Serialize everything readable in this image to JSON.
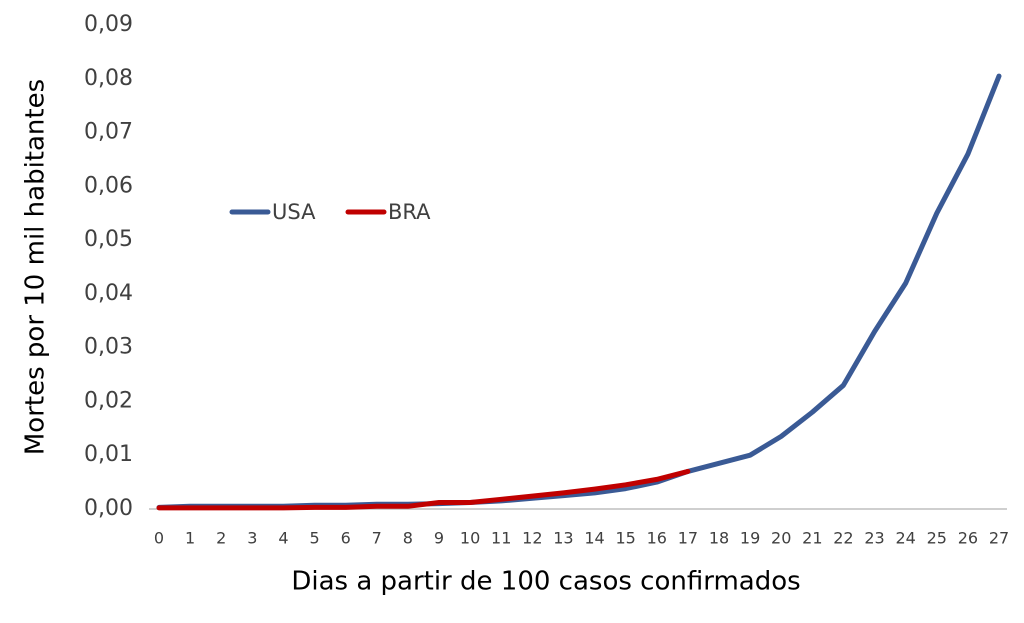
{
  "chart_data": {
    "type": "line",
    "ylabel": "Mortes por 10 mil habitantes",
    "xlabel": "Dias a partir de 100 casos confirmados",
    "categories": [
      "0",
      "1",
      "2",
      "3",
      "4",
      "5",
      "6",
      "7",
      "8",
      "9",
      "10",
      "11",
      "12",
      "13",
      "14",
      "15",
      "16",
      "17",
      "18",
      "19",
      "20",
      "21",
      "22",
      "23",
      "24",
      "25",
      "26",
      "27"
    ],
    "series": [
      {
        "name": "USA",
        "color": "#3a5a95",
        "values": [
          0.0003,
          0.0005,
          0.0005,
          0.0005,
          0.0005,
          0.0007,
          0.0007,
          0.0009,
          0.0009,
          0.001,
          0.0012,
          0.0015,
          0.002,
          0.0025,
          0.003,
          0.0038,
          0.005,
          0.007,
          0.0085,
          0.01,
          0.0135,
          0.018,
          0.023,
          0.033,
          0.042,
          0.055,
          0.066,
          0.0805
        ]
      },
      {
        "name": "BRA",
        "color": "#c00000",
        "values": [
          0.0002,
          0.0002,
          0.0002,
          0.0002,
          0.0002,
          0.0003,
          0.0003,
          0.0005,
          0.0005,
          0.0012,
          0.0012,
          0.0018,
          0.0024,
          0.003,
          0.0037,
          0.0045,
          0.0055,
          0.007,
          null,
          null,
          null,
          null,
          null,
          null,
          null,
          null,
          null,
          null
        ]
      }
    ],
    "ylim": [
      0,
      0.09
    ],
    "yticks": [
      {
        "value": 0,
        "label": "0,00"
      },
      {
        "value": 0.01,
        "label": "0,01"
      },
      {
        "value": 0.02,
        "label": "0,02"
      },
      {
        "value": 0.03,
        "label": "0,03"
      },
      {
        "value": 0.04,
        "label": "0,04"
      },
      {
        "value": 0.05,
        "label": "0,05"
      },
      {
        "value": 0.06,
        "label": "0,06"
      },
      {
        "value": 0.07,
        "label": "0,07"
      },
      {
        "value": 0.08,
        "label": "0,08"
      },
      {
        "value": 0.09,
        "label": "0,09"
      }
    ],
    "grid": false,
    "legend": "upper left"
  }
}
